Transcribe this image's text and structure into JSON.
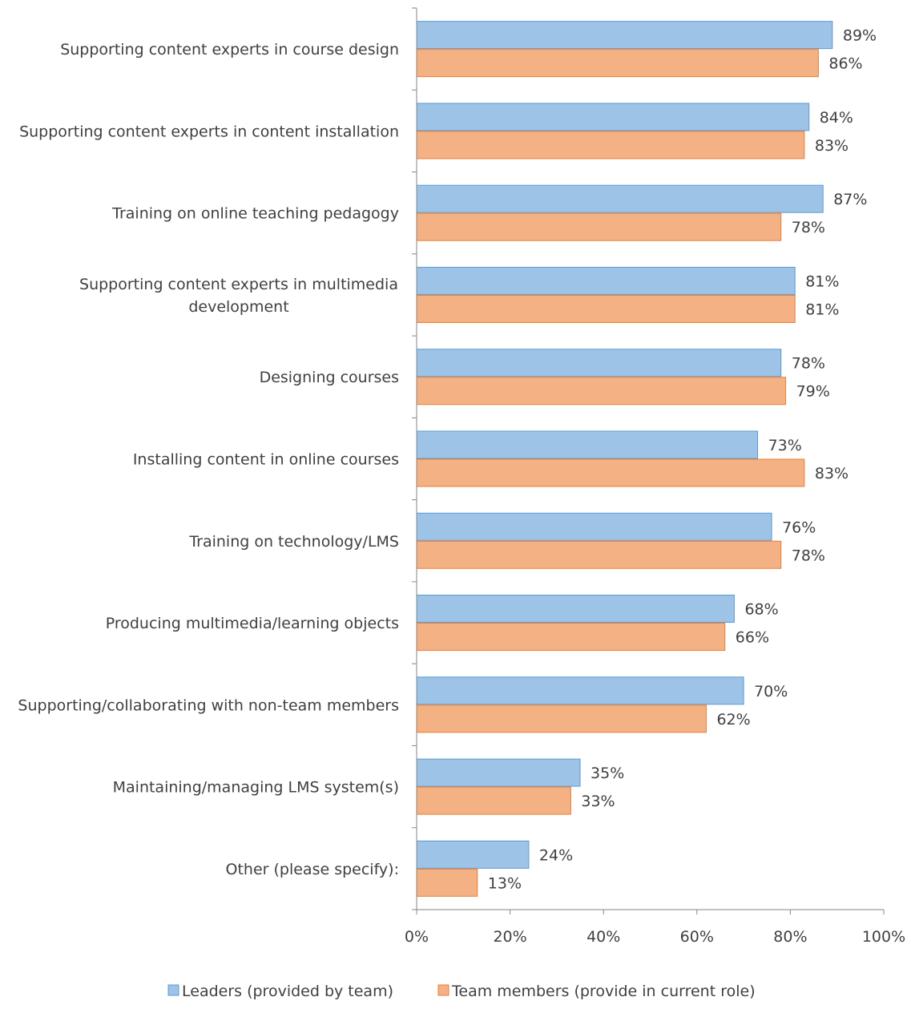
{
  "chart_data": {
    "type": "bar",
    "orientation": "horizontal",
    "categories": [
      [
        "Supporting content experts in course design"
      ],
      [
        "Supporting content experts in content installation"
      ],
      [
        "Training on online teaching pedagogy"
      ],
      [
        "Supporting content experts in multimedia",
        "development"
      ],
      [
        "Designing courses"
      ],
      [
        "Installing content in online courses"
      ],
      [
        "Training on technology/LMS"
      ],
      [
        "Producing multimedia/learning objects"
      ],
      [
        "Supporting/collaborating with non-team members"
      ],
      [
        "Maintaining/managing LMS system(s)"
      ],
      [
        "Other (please specify):"
      ]
    ],
    "series": [
      {
        "name": "Leaders (provided by team)",
        "color": "#9dc3e6",
        "stroke": "#5b9bd5",
        "values": [
          89,
          84,
          87,
          81,
          78,
          73,
          76,
          68,
          70,
          35,
          24
        ],
        "labels": [
          "89%",
          "84%",
          "87%",
          "81%",
          "78%",
          "73%",
          "76%",
          "68%",
          "70%",
          "35%",
          "24%"
        ]
      },
      {
        "name": "Team members (provide in current role)",
        "color": "#f4b183",
        "stroke": "#ed7d31",
        "values": [
          86,
          83,
          78,
          81,
          79,
          83,
          78,
          66,
          62,
          33,
          13
        ],
        "labels": [
          "86%",
          "83%",
          "78%",
          "81%",
          "79%",
          "83%",
          "78%",
          "66%",
          "62%",
          "33%",
          "13%"
        ]
      }
    ],
    "xlim": [
      0,
      100
    ],
    "xticks": [
      "0%",
      "20%",
      "40%",
      "60%",
      "80%",
      "100%"
    ],
    "legend_position": "bottom",
    "grid": false
  }
}
